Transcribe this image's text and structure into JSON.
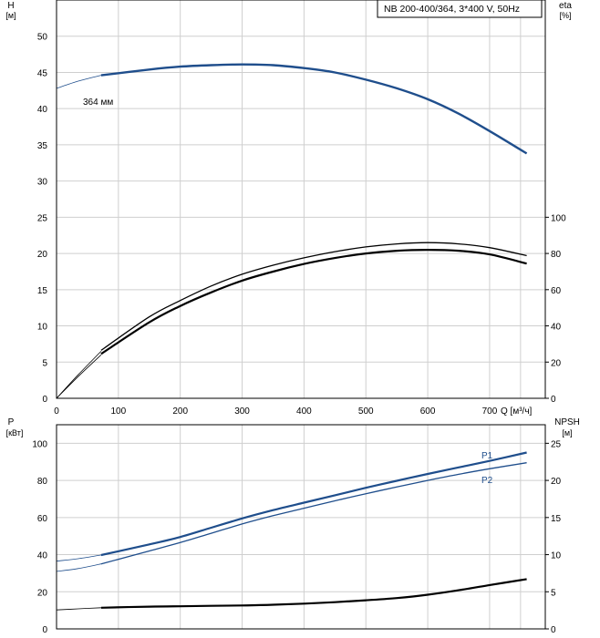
{
  "chart_data": [
    {
      "type": "line",
      "title_box": "NB 200-400/364, 3*400 V, 50Hz",
      "x_axis": {
        "label": "Q [м³/ч]",
        "range": [
          0,
          790
        ],
        "ticks": [
          0,
          100,
          200,
          300,
          400,
          500,
          600,
          700
        ]
      },
      "y_left": {
        "name": "H",
        "unit": "[м]",
        "range": [
          0,
          55
        ],
        "ticks": [
          0,
          5,
          10,
          15,
          20,
          25,
          30,
          35,
          40,
          45,
          50
        ]
      },
      "y_right": {
        "name": "eta",
        "unit": "[%]",
        "range": [
          0,
          100
        ],
        "ticks": [
          0,
          20,
          40,
          60,
          80,
          100
        ],
        "scale_max_h_equiv": 25
      },
      "grid": true,
      "series": [
        {
          "name": "364 мм",
          "axis": "left",
          "color": "#1f4e8c",
          "extension": {
            "x": [
              0,
              35,
              72
            ],
            "y": [
              42.8,
              43.8,
              44.6
            ]
          },
          "x": [
            72,
            150,
            200,
            250,
            300,
            350,
            400,
            450,
            500,
            550,
            600,
            650,
            700,
            760
          ],
          "y": [
            44.6,
            45.4,
            45.8,
            46.0,
            46.1,
            46.0,
            45.6,
            45.0,
            44.0,
            42.8,
            41.3,
            39.3,
            36.9,
            33.8
          ]
        },
        {
          "axis": "right",
          "color": "#000000",
          "extension": {
            "x": [
              0,
              35,
              72
            ],
            "y": [
              0,
              12,
              24
            ]
          },
          "x": [
            72,
            150,
            200,
            250,
            300,
            350,
            400,
            450,
            500,
            550,
            600,
            650,
            700,
            760
          ],
          "y": [
            24.5,
            42,
            51,
            58.5,
            65,
            70,
            74.2,
            77.5,
            80,
            81.5,
            82.0,
            81.5,
            79.5,
            74.4
          ]
        },
        {
          "axis": "right",
          "color": "#000000",
          "extension": {
            "x": [
              0,
              35,
              72
            ],
            "y": [
              0,
              13,
              26
            ]
          },
          "x": [
            72,
            150,
            200,
            250,
            300,
            350,
            400,
            450,
            500,
            550,
            600,
            650,
            700,
            760
          ],
          "y": [
            26.5,
            45,
            54,
            62,
            68.5,
            73.5,
            77.6,
            81,
            83.6,
            85.3,
            86.0,
            85.3,
            83.2,
            78.8
          ]
        }
      ]
    },
    {
      "type": "line",
      "x_axis": {
        "range": [
          0,
          790
        ],
        "ticks": [
          0,
          100,
          200,
          300,
          400,
          500,
          600,
          700
        ]
      },
      "y_left": {
        "name": "P",
        "unit": "[кВт]",
        "range": [
          0,
          110
        ],
        "ticks": [
          0,
          20,
          40,
          60,
          80,
          100
        ]
      },
      "y_right": {
        "name": "NPSH",
        "unit": "[м]",
        "range": [
          0,
          27.5
        ],
        "ticks": [
          0,
          5,
          10,
          15,
          20,
          25
        ]
      },
      "grid": true,
      "series": [
        {
          "name": "P1",
          "axis": "left",
          "color": "#1f4e8c",
          "extension": {
            "x": [
              0,
              35,
              72
            ],
            "y": [
              36.5,
              37.8,
              39.8
            ]
          },
          "x": [
            72,
            150,
            200,
            250,
            300,
            350,
            400,
            450,
            500,
            550,
            600,
            650,
            700,
            760
          ],
          "y": [
            39.8,
            45.5,
            49.5,
            54.5,
            59.5,
            64.0,
            68.0,
            72.0,
            76.0,
            79.8,
            83.5,
            87.0,
            90.5,
            95.0
          ]
        },
        {
          "name": "P2",
          "axis": "left",
          "color": "#1f4e8c",
          "extension": {
            "x": [
              0,
              35,
              72
            ],
            "y": [
              31.0,
              32.5,
              35.0
            ]
          },
          "x": [
            72,
            150,
            200,
            250,
            300,
            350,
            400,
            450,
            500,
            550,
            600,
            650,
            700,
            760
          ],
          "y": [
            35.0,
            42.0,
            46.5,
            51.5,
            56.5,
            61.0,
            65.0,
            69.0,
            72.8,
            76.5,
            80.0,
            83.3,
            86.3,
            89.5
          ]
        },
        {
          "name": "NPSH",
          "axis": "right",
          "color": "#000000",
          "extension": {
            "x": [
              0,
              35,
              72
            ],
            "y": [
              2.55,
              2.7,
              2.85
            ]
          },
          "x": [
            72,
            150,
            200,
            250,
            300,
            350,
            400,
            450,
            500,
            550,
            600,
            650,
            700,
            760
          ],
          "y": [
            2.85,
            3.0,
            3.05,
            3.1,
            3.15,
            3.25,
            3.4,
            3.6,
            3.85,
            4.15,
            4.6,
            5.2,
            5.9,
            6.7
          ]
        }
      ]
    }
  ]
}
